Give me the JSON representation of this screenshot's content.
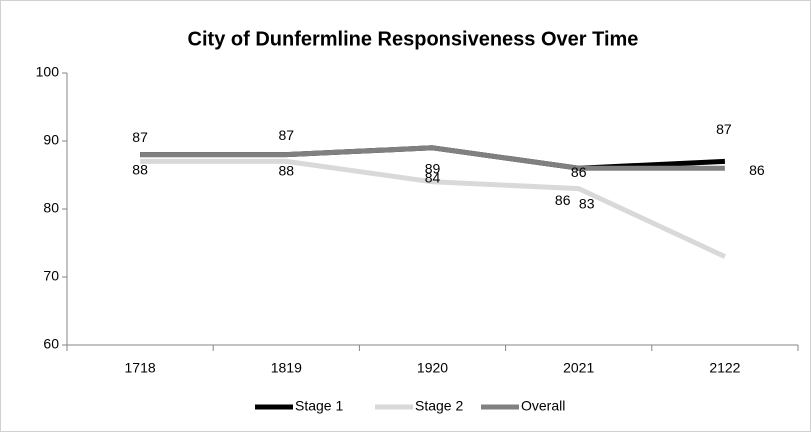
{
  "chart_data": {
    "type": "line",
    "title": "City of Dunfermline Responsiveness Over Time",
    "categories": [
      "1718",
      "1819",
      "1920",
      "2021",
      "2122"
    ],
    "series": [
      {
        "name": "Stage 1",
        "color": "#000000",
        "values": [
          88,
          88,
          89,
          86,
          87
        ],
        "value_labels": [
          "88",
          "88",
          "89",
          "86",
          "87"
        ]
      },
      {
        "name": "Stage 2",
        "color": "#d9d9d9",
        "values": [
          87,
          87,
          84,
          83,
          73
        ],
        "value_labels": [
          "87",
          "87",
          "84",
          "83",
          null
        ]
      },
      {
        "name": "Overall",
        "color": "#808080",
        "values": [
          88,
          88,
          89,
          86,
          86
        ],
        "value_labels": [
          null,
          null,
          null,
          "86",
          "86"
        ]
      }
    ],
    "ylim": [
      60,
      100
    ],
    "yticks": [
      60,
      70,
      80,
      90,
      100
    ],
    "legend": "bottom"
  }
}
